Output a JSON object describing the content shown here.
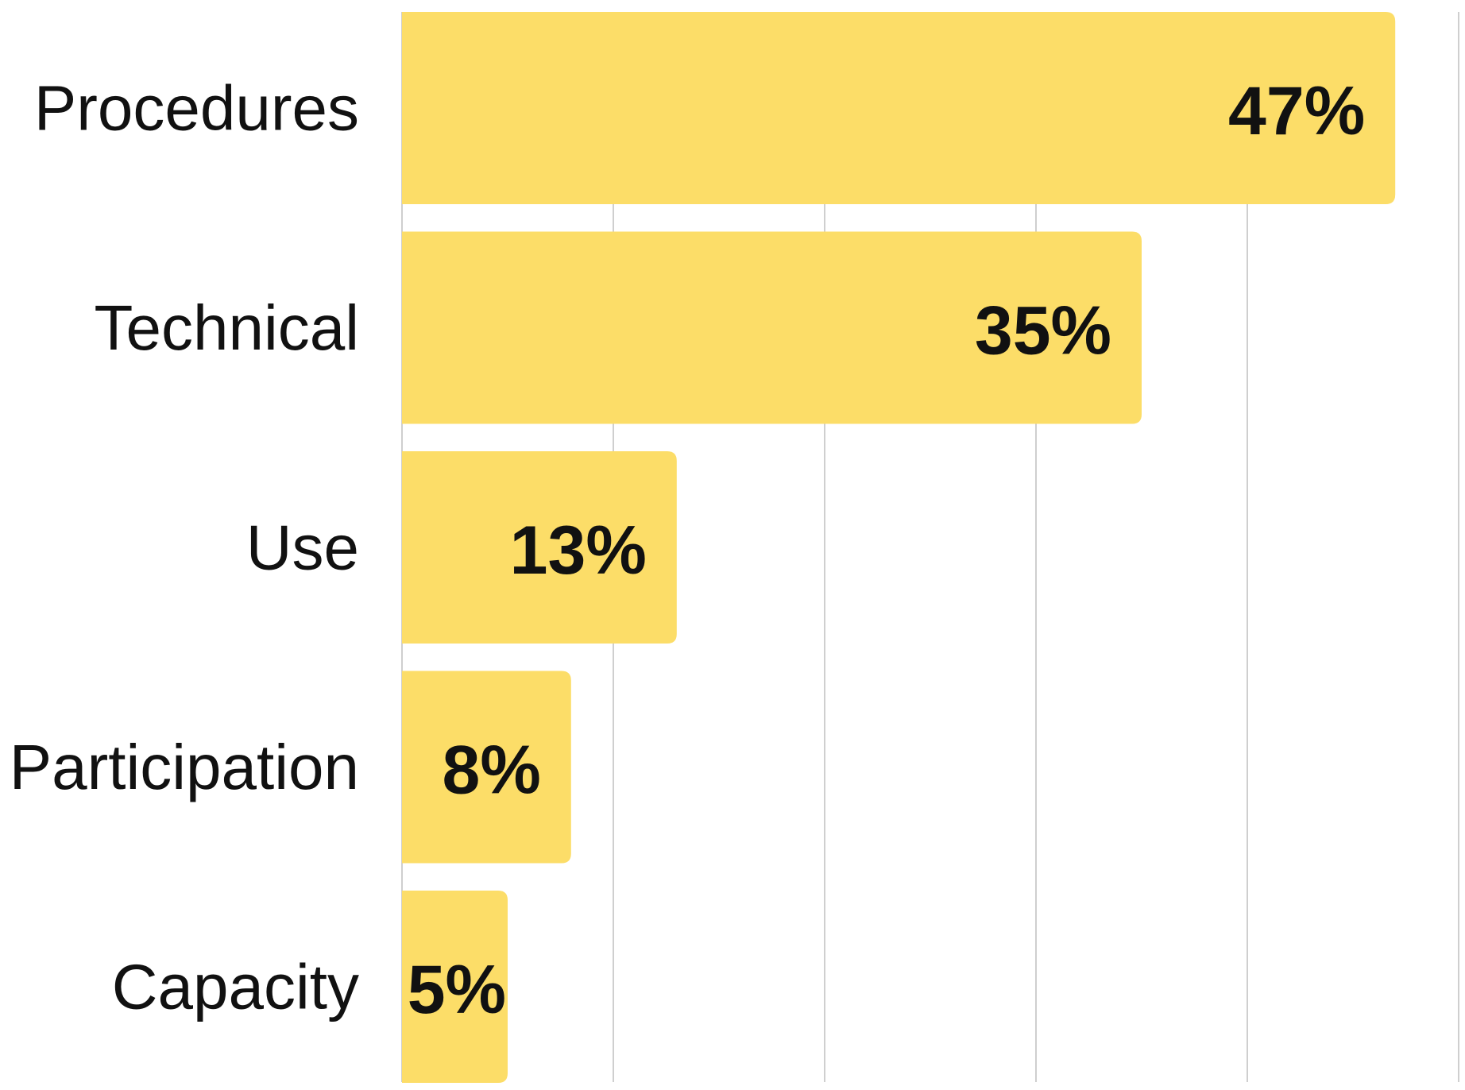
{
  "chart_data": {
    "type": "bar",
    "orientation": "horizontal",
    "title": "",
    "xlabel": "",
    "ylabel": "",
    "categories": [
      "Procedures",
      "Technical",
      "Use",
      "Participation",
      "Capacity"
    ],
    "values": [
      47,
      35,
      13,
      8,
      5
    ],
    "value_labels": [
      "47%",
      "35%",
      "13%",
      "8%",
      "5%"
    ],
    "xlim": [
      0,
      50
    ],
    "grid": true,
    "gridline_values": [
      0,
      10,
      20,
      30,
      40,
      50
    ],
    "legend": "none",
    "colors": {
      "bar": "#FCDD68",
      "text": "#111111",
      "grid": "#CFCFCF"
    }
  }
}
